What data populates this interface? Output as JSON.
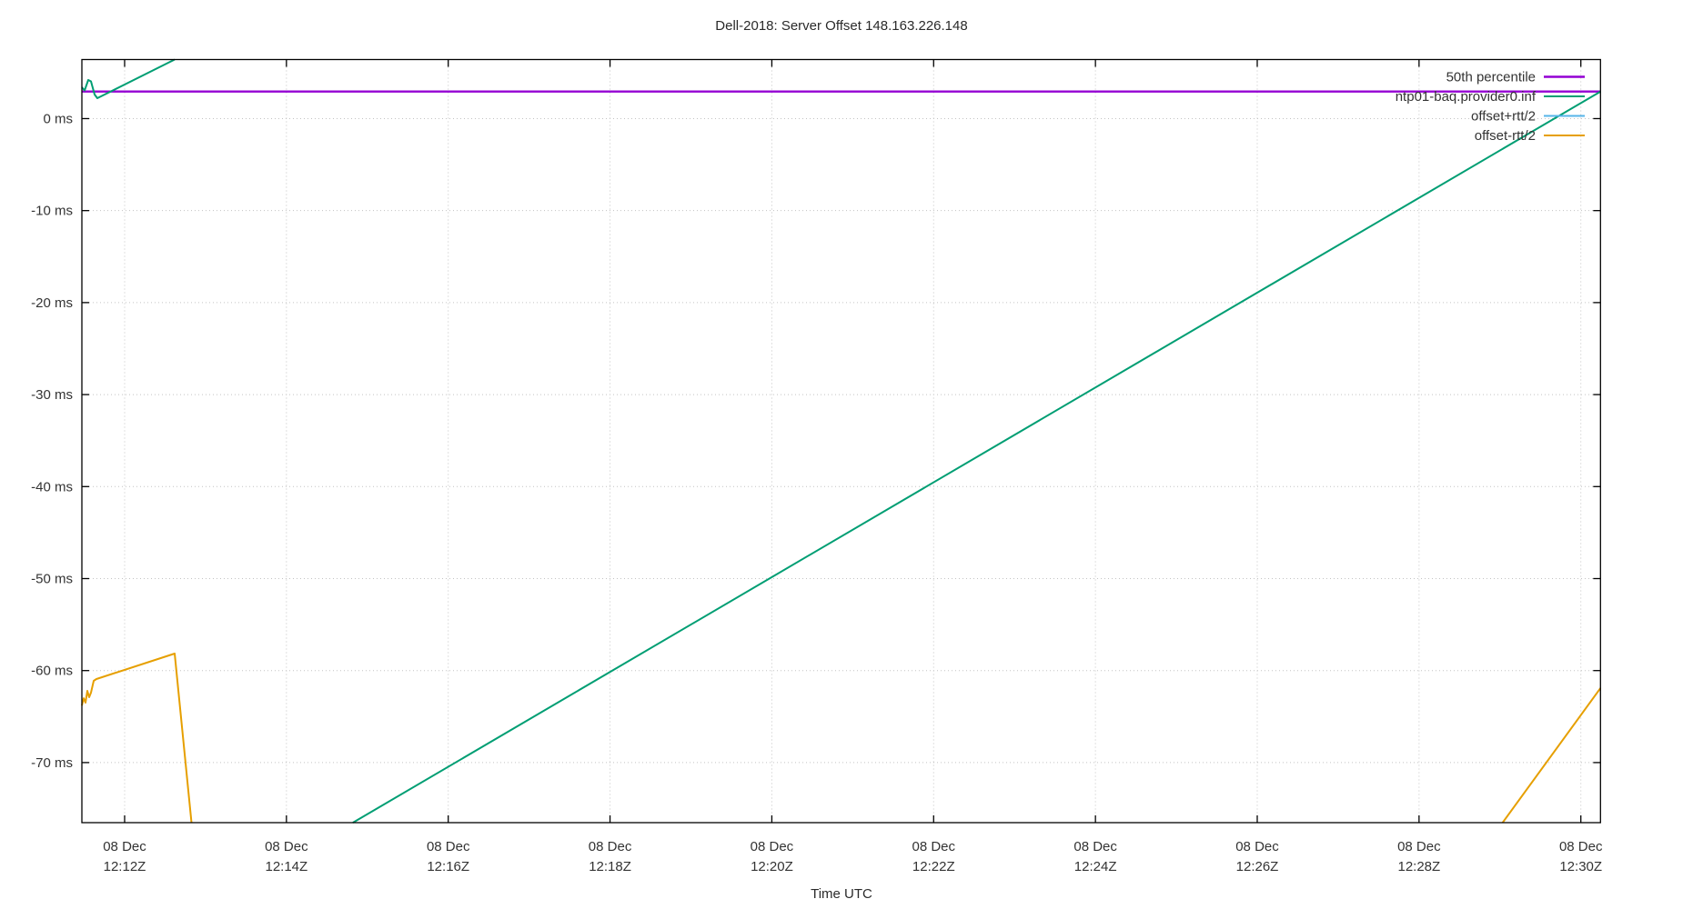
{
  "title": "Dell-2018: Server Offset 148.163.226.148",
  "chart_data": {
    "type": "line",
    "title": "Dell-2018: Server Offset 148.163.226.148",
    "xlabel": "Time UTC",
    "ylabel": "",
    "grid": "dotted",
    "legend_position": "top-right-inside",
    "background": "#ffffff",
    "border_color": "#000000",
    "grid_color": "#c3c3c3",
    "text_color": "#333333",
    "x_axis": {
      "unit": "minutes after 12:00 UTC on 08 Dec",
      "lim": [
        11.4716,
        30.2428
      ],
      "ticks": [
        {
          "m": 12,
          "line1": "08 Dec",
          "line2": "12:12Z"
        },
        {
          "m": 14,
          "line1": "08 Dec",
          "line2": "12:14Z"
        },
        {
          "m": 16,
          "line1": "08 Dec",
          "line2": "12:16Z"
        },
        {
          "m": 18,
          "line1": "08 Dec",
          "line2": "12:18Z"
        },
        {
          "m": 20,
          "line1": "08 Dec",
          "line2": "12:20Z"
        },
        {
          "m": 22,
          "line1": "08 Dec",
          "line2": "12:22Z"
        },
        {
          "m": 24,
          "line1": "08 Dec",
          "line2": "12:24Z"
        },
        {
          "m": 26,
          "line1": "08 Dec",
          "line2": "12:26Z"
        },
        {
          "m": 28,
          "line1": "08 Dec",
          "line2": "12:28Z"
        },
        {
          "m": 30,
          "line1": "08 Dec",
          "line2": "12:30Z"
        }
      ]
    },
    "y_axis": {
      "unit": "ms",
      "lim": [
        -76.53,
        6.42
      ],
      "ticks": [
        {
          "v": 0,
          "label": "0 ms"
        },
        {
          "v": -10,
          "label": "-10 ms"
        },
        {
          "v": -20,
          "label": "-20 ms"
        },
        {
          "v": -30,
          "label": "-30 ms"
        },
        {
          "v": -40,
          "label": "-40 ms"
        },
        {
          "v": -50,
          "label": "-50 ms"
        },
        {
          "v": -60,
          "label": "-60 ms"
        },
        {
          "v": -70,
          "label": "-70 ms"
        }
      ]
    },
    "series": [
      {
        "name": "50th percentile",
        "color": "#9400d3",
        "width": 2.4,
        "segments": [
          [
            [
              11.4716,
              2.94
            ],
            [
              30.2428,
              2.94
            ]
          ]
        ]
      },
      {
        "name": "ntp01-baq.provider0.inf",
        "color": "#009e73",
        "width": 2,
        "segments": [
          [
            [
              11.4716,
              3.41
            ],
            [
              11.5053,
              3.06
            ],
            [
              11.5503,
              4.2
            ],
            [
              11.584,
              4.05
            ],
            [
              11.629,
              2.62
            ],
            [
              11.6627,
              2.22
            ],
            [
              12.6183,
              6.42
            ]
          ],
          [
            [
              14.8218,
              -76.53
            ],
            [
              30.2428,
              2.94
            ]
          ]
        ]
      },
      {
        "name": "offset+rtt/2",
        "color": "#56b4e9",
        "width": 2,
        "segments": []
      },
      {
        "name": "offset-rtt/2",
        "color": "#e69f00",
        "width": 2,
        "segments": [
          [
            [
              11.4716,
              -63.79
            ],
            [
              11.4941,
              -63.0
            ],
            [
              11.5166,
              -63.49
            ],
            [
              11.5391,
              -62.2
            ],
            [
              11.5616,
              -62.89
            ],
            [
              11.584,
              -62.4
            ],
            [
              11.6178,
              -61.12
            ],
            [
              11.6515,
              -60.92
            ],
            [
              12.6183,
              -58.15
            ],
            [
              12.8263,
              -76.53
            ]
          ],
          [
            [
              29.0323,
              -76.53
            ],
            [
              30.2428,
              -61.91
            ]
          ]
        ]
      }
    ]
  }
}
